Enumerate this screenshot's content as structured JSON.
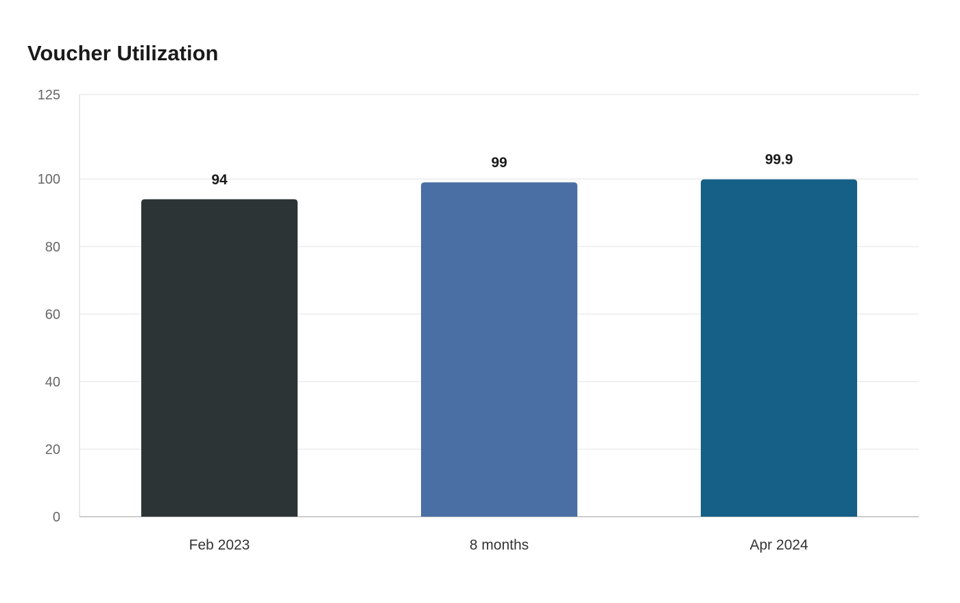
{
  "chart_data": {
    "type": "bar",
    "title": "Voucher Utilization",
    "categories": [
      "Feb 2023",
      "8 months",
      "Apr 2024"
    ],
    "values": [
      94,
      99,
      99.9
    ],
    "value_labels": [
      "94",
      "99",
      "99.9"
    ],
    "colors": [
      "#2d3436",
      "#4a6fa5",
      "#166088"
    ],
    "yticks": [
      0,
      20,
      40,
      60,
      80,
      100,
      125
    ],
    "ylim": [
      0,
      125
    ],
    "xlabel": "",
    "ylabel": "",
    "grid": true,
    "legend": "none"
  }
}
